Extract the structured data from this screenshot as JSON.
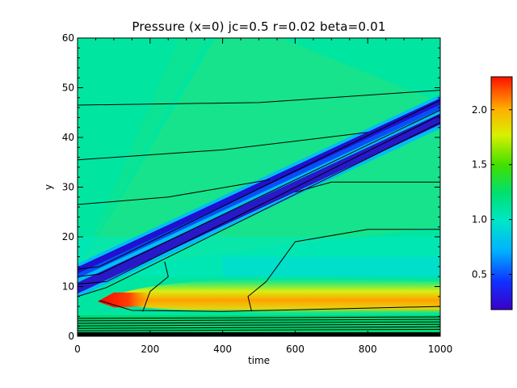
{
  "chart_data": {
    "type": "heatmap",
    "title": "Pressure (x=0) jc=0.5 r=0.02 beta=0.01",
    "xlabel": "time",
    "ylabel": "y",
    "xlim": [
      0,
      1000
    ],
    "ylim": [
      0,
      60
    ],
    "xticks": [
      "0",
      "200",
      "400",
      "600",
      "800",
      "1000"
    ],
    "yticks": [
      "0",
      "10",
      "20",
      "30",
      "40",
      "50",
      "60"
    ],
    "colorbar": {
      "range": [
        0.18,
        2.3
      ],
      "ticks": [
        "0.5",
        "1.0",
        "1.5",
        "2.0"
      ],
      "colormap": "rainbow"
    },
    "colors": {
      "background": "#00e6a0",
      "low": "#3a00d8",
      "high": "#ff2000",
      "contour": "#000000"
    },
    "features": {
      "diagonal_trough": {
        "value_min": 0.3,
        "y_at_time_0": 12,
        "y_at_time_1000": 46
      },
      "high_pressure_band": {
        "value_max": 2.2,
        "y_center": 7,
        "time_start": 60
      }
    },
    "contour_levels_y_at_time_0": [
      46.5,
      35.5,
      26.5,
      13.5,
      12,
      10.5,
      8,
      3,
      2,
      1.2
    ]
  }
}
